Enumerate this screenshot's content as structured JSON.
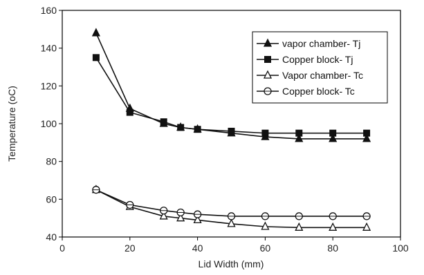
{
  "chart_data": {
    "type": "line",
    "title": "",
    "xlabel": "Lid Width (mm)",
    "ylabel": "Temperature (oC)",
    "xlim": [
      0,
      100
    ],
    "ylim": [
      40,
      160
    ],
    "x_ticks": [
      "0",
      "20",
      "40",
      "60",
      "80",
      "100"
    ],
    "y_ticks": [
      "40",
      "60",
      "80",
      "100",
      "120",
      "140",
      "160"
    ],
    "grid": false,
    "legend_placement": "top-right",
    "series": [
      {
        "name": "vapor chamber- Tj",
        "marker": "filled-triangle",
        "x": [
          10,
          20,
          30,
          35,
          40,
          50,
          60,
          70,
          80,
          90
        ],
        "y": [
          148,
          108,
          100,
          98,
          97,
          95,
          93,
          92,
          92,
          92
        ]
      },
      {
        "name": "Copper block- Tj",
        "marker": "filled-square",
        "x": [
          10,
          20,
          30,
          35,
          40,
          50,
          60,
          70,
          80,
          90
        ],
        "y": [
          135,
          106,
          101,
          98,
          97,
          96,
          95,
          95,
          95,
          95
        ]
      },
      {
        "name": "Vapor chamber- Tc",
        "marker": "open-triangle",
        "x": [
          10,
          20,
          30,
          35,
          40,
          50,
          60,
          70,
          80,
          90
        ],
        "y": [
          65,
          56,
          51,
          50,
          49,
          47,
          45.5,
          45,
          45,
          45
        ]
      },
      {
        "name": "Copper block- Tc",
        "marker": "open-circle",
        "x": [
          10,
          20,
          30,
          35,
          40,
          50,
          60,
          70,
          80,
          90
        ],
        "y": [
          65,
          57,
          54,
          53,
          52,
          51,
          51,
          51,
          51,
          51
        ]
      }
    ]
  }
}
